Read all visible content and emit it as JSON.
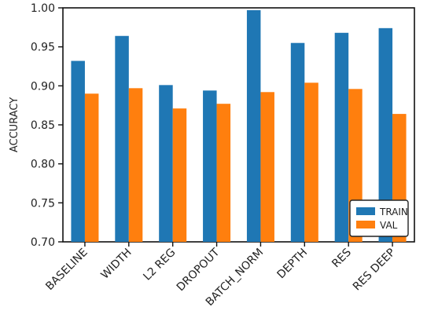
{
  "chart_data": {
    "type": "bar",
    "title": "",
    "xlabel": "",
    "ylabel": "ACCURACY",
    "ylim": [
      0.7,
      1.0
    ],
    "yticks": [
      "0.70",
      "0.75",
      "0.80",
      "0.85",
      "0.90",
      "0.95",
      "1.00"
    ],
    "grid": false,
    "legend_position": "bottom-right",
    "categories": [
      "BASELINE",
      "WIDTH",
      "L2 REG",
      "DROPOUT",
      "BATCH_NORM",
      "DEPTH",
      "RES",
      "RES DEEP"
    ],
    "series": [
      {
        "name": "TRAIN",
        "color": "#1f77b4",
        "values": [
          0.932,
          0.964,
          0.901,
          0.894,
          0.997,
          0.955,
          0.968,
          0.974
        ]
      },
      {
        "name": "VAL",
        "color": "#ff7f0e",
        "values": [
          0.89,
          0.897,
          0.871,
          0.877,
          0.892,
          0.904,
          0.896,
          0.864
        ]
      }
    ]
  }
}
